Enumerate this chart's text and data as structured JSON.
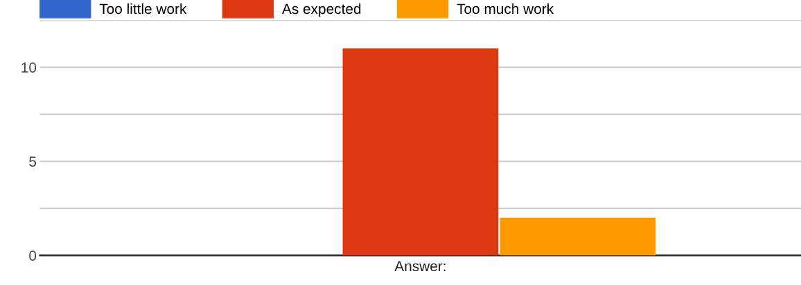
{
  "chart_data": {
    "type": "bar",
    "xlabel": "Answer:",
    "categories": [
      null
    ],
    "series": [
      {
        "name": "Too little work",
        "color": "#3366cc",
        "values": [
          0
        ]
      },
      {
        "name": "As expected",
        "color": "#dc3912",
        "values": [
          11
        ]
      },
      {
        "name": "Too much work",
        "color": "#ff9900",
        "values": [
          2
        ]
      }
    ],
    "ylim": [
      0,
      12.5
    ],
    "yticks": [
      0,
      {
        "value": 2.5,
        "label": null
      },
      5,
      {
        "value": 7.5,
        "label": null
      },
      10,
      {
        "value": 12.5,
        "label": null
      }
    ],
    "grid": "y",
    "legend": "top left"
  }
}
